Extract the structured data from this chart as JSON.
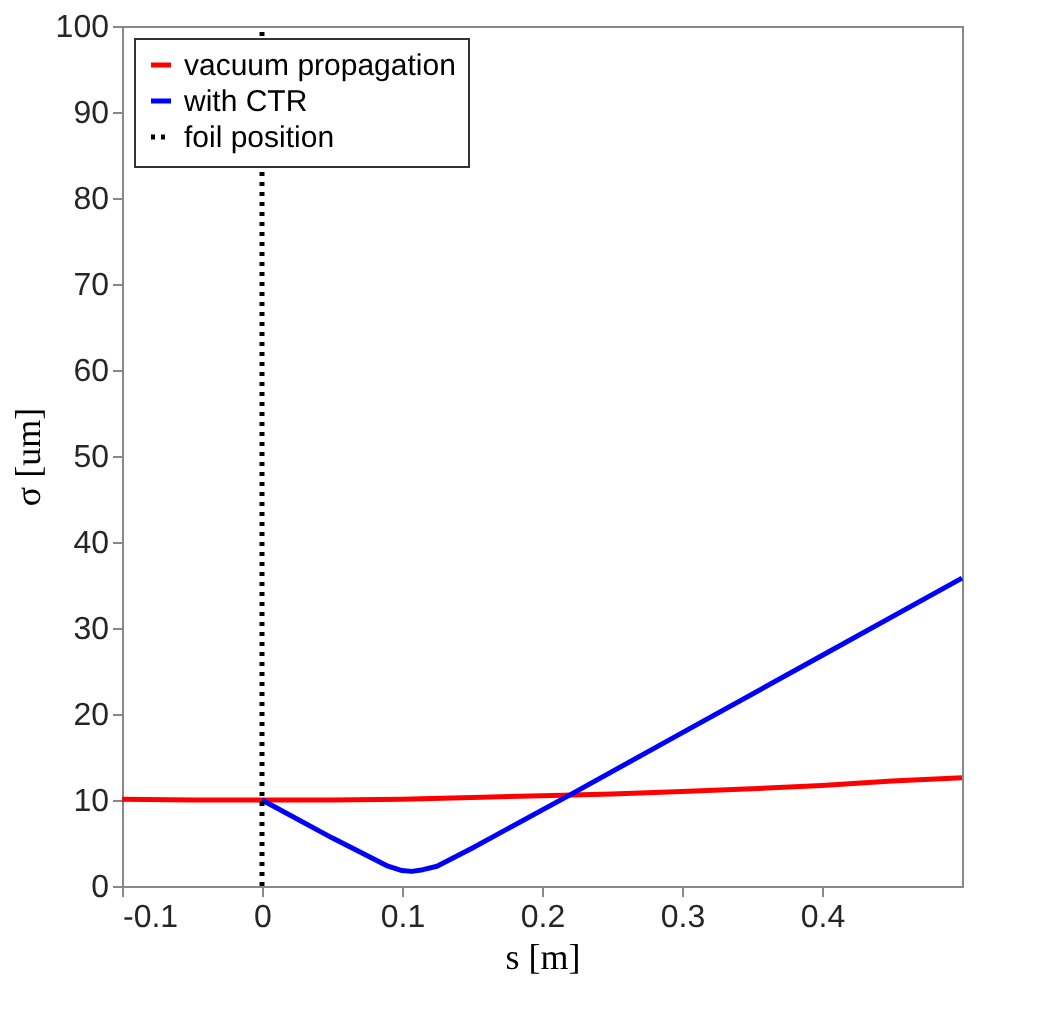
{
  "chart_data": {
    "type": "line",
    "xlabel": "s [m]",
    "ylabel": "σ [um]",
    "xlim": [
      -0.1,
      0.5
    ],
    "xticks": [
      -0.1,
      0,
      0.1,
      0.2,
      0.3,
      0.4
    ],
    "ylim": [
      0,
      100
    ],
    "yticks": [
      0,
      10,
      20,
      30,
      40,
      50,
      60,
      70,
      80,
      90,
      100
    ],
    "grid": false,
    "legend": "top left",
    "line_style": "solid",
    "marker": "none",
    "series": [
      {
        "name": "vacuum propagation",
        "color": "#ff0000",
        "x": [
          -0.1,
          -0.05,
          0,
          0.05,
          0.1,
          0.15,
          0.2,
          0.25,
          0.3,
          0.35,
          0.4,
          0.45,
          0.5
        ],
        "values": [
          10.1,
          10.0,
          10.0,
          10.0,
          10.1,
          10.3,
          10.5,
          10.7,
          11.0,
          11.3,
          11.7,
          12.2,
          12.6
        ]
      },
      {
        "name": "with CTR",
        "color": "#0000ff",
        "x": [
          0,
          0.05,
          0.09,
          0.1,
          0.107,
          0.115,
          0.125,
          0.15,
          0.22,
          0.3,
          0.4,
          0.5
        ],
        "values": [
          10,
          5.6,
          2.3,
          1.8,
          1.7,
          1.9,
          2.3,
          4.4,
          10.6,
          17.8,
          26.8,
          35.8
        ]
      }
    ],
    "ref_lines": [
      {
        "axis": "x",
        "value": 0,
        "label": "foil position",
        "color": "#000000",
        "line_style": "dotted"
      }
    ]
  }
}
